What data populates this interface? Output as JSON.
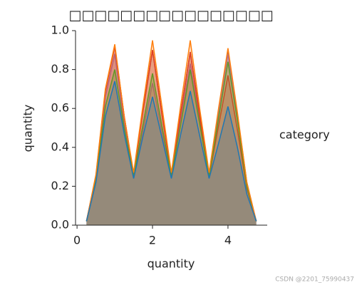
{
  "chart_data": {
    "type": "kde",
    "title": "□□□□□□□□□□□□□□□□",
    "xlabel": "quantity",
    "ylabel": "quantity",
    "legend_title": "category",
    "watermark": "CSDN @2201_75990437",
    "x": [
      0.25,
      0.5,
      0.75,
      1,
      1.25,
      1.5,
      1.75,
      2,
      2.25,
      2.5,
      2.75,
      3,
      3.25,
      3.5,
      3.75,
      4,
      4.25,
      4.5,
      4.75
    ],
    "series": [
      {
        "color": "#1f77b4",
        "values": [
          0.02,
          0.22,
          0.56,
          0.74,
          0.47,
          0.24,
          0.46,
          0.66,
          0.45,
          0.24,
          0.47,
          0.69,
          0.46,
          0.24,
          0.42,
          0.61,
          0.4,
          0.16,
          0.02
        ]
      },
      {
        "color": "#ff7f0e",
        "values": [
          0.02,
          0.26,
          0.7,
          0.93,
          0.56,
          0.27,
          0.62,
          0.95,
          0.61,
          0.27,
          0.62,
          0.95,
          0.6,
          0.27,
          0.6,
          0.91,
          0.58,
          0.22,
          0.02
        ]
      },
      {
        "color": "#2ca02c",
        "values": [
          0.02,
          0.23,
          0.61,
          0.8,
          0.5,
          0.25,
          0.52,
          0.78,
          0.51,
          0.25,
          0.52,
          0.8,
          0.52,
          0.25,
          0.55,
          0.84,
          0.54,
          0.2,
          0.02
        ]
      },
      {
        "color": "#d62728",
        "values": [
          0.02,
          0.25,
          0.69,
          0.92,
          0.56,
          0.26,
          0.59,
          0.9,
          0.57,
          0.26,
          0.58,
          0.89,
          0.56,
          0.25,
          0.51,
          0.77,
          0.49,
          0.19,
          0.02
        ]
      },
      {
        "color": "#9467bd",
        "values": [
          0.02,
          0.24,
          0.66,
          0.88,
          0.52,
          0.25,
          0.49,
          0.73,
          0.48,
          0.25,
          0.55,
          0.83,
          0.54,
          0.25,
          0.58,
          0.88,
          0.56,
          0.21,
          0.02
        ]
      },
      {
        "color": "#8c564b",
        "values": [
          0.02,
          0.25,
          0.69,
          0.92,
          0.56,
          0.26,
          0.59,
          0.9,
          0.57,
          0.26,
          0.58,
          0.89,
          0.57,
          0.26,
          0.59,
          0.9,
          0.57,
          0.22,
          0.02
        ]
      }
    ],
    "xlim": [
      -0.04,
      5.04
    ],
    "ylim": [
      0,
      1.0
    ],
    "xticks": [
      0,
      2,
      4
    ],
    "yticks": [
      {
        "value": 0,
        "label": "0.0"
      },
      0.2,
      0.4,
      0.6,
      0.8,
      {
        "value": 1,
        "label": "1.0"
      }
    ]
  }
}
